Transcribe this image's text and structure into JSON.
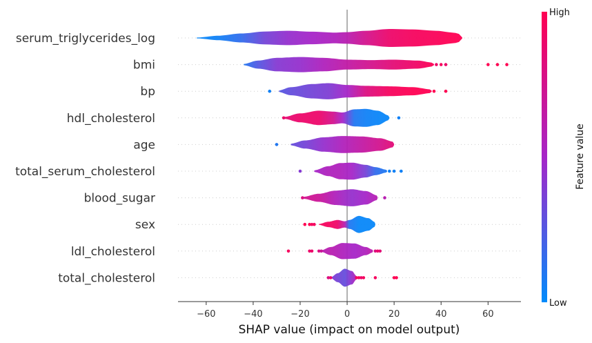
{
  "chart_data": {
    "type": "violin",
    "xlabel": "SHAP value (impact on model output)",
    "xlim": [
      -72,
      74
    ],
    "xticks": [
      -60,
      -40,
      -20,
      0,
      20,
      40,
      60
    ],
    "xtick_labels": [
      "−60",
      "−40",
      "−20",
      "0",
      "20",
      "40",
      "60"
    ],
    "colorbar": {
      "title": "Feature value",
      "high_label": "High",
      "low_label": "Low",
      "low_color": "#008bfb",
      "mid_color": "#a625c8",
      "high_color": "#ff0052"
    },
    "features": [
      {
        "name": "serum_triglycerides_log",
        "profile": [
          [
            -64,
            0.05,
            0.02
          ],
          [
            -55,
            0.25,
            0.05
          ],
          [
            -45,
            0.5,
            0.15
          ],
          [
            -35,
            0.72,
            0.35
          ],
          [
            -25,
            0.8,
            0.45
          ],
          [
            -15,
            0.7,
            0.5
          ],
          [
            -5,
            0.6,
            0.55
          ],
          [
            0,
            0.65,
            0.6
          ],
          [
            8,
            0.8,
            0.75
          ],
          [
            18,
            1.0,
            0.9
          ],
          [
            28,
            0.95,
            0.95
          ],
          [
            38,
            0.8,
            0.97
          ],
          [
            45,
            0.6,
            1.0
          ],
          [
            49,
            0.4,
            1.0
          ]
        ],
        "outliers": []
      },
      {
        "name": "bmi",
        "profile": [
          [
            -44,
            0.08,
            0.1
          ],
          [
            -38,
            0.45,
            0.25
          ],
          [
            -30,
            0.75,
            0.4
          ],
          [
            -20,
            0.85,
            0.45
          ],
          [
            -10,
            0.75,
            0.55
          ],
          [
            0,
            0.55,
            0.65
          ],
          [
            10,
            0.5,
            0.75
          ],
          [
            20,
            0.55,
            0.85
          ],
          [
            30,
            0.45,
            0.92
          ],
          [
            37,
            0.2,
            1.0
          ]
        ],
        "outliers": [
          [
            38,
            0.9
          ],
          [
            40,
            0.95
          ],
          [
            42,
            0.9
          ],
          [
            60,
            1.0
          ],
          [
            64,
            1.0
          ],
          [
            68,
            1.0
          ]
        ]
      },
      {
        "name": "bp",
        "profile": [
          [
            -29,
            0.1,
            0.25
          ],
          [
            -24,
            0.45,
            0.3
          ],
          [
            -15,
            0.8,
            0.35
          ],
          [
            -8,
            0.9,
            0.38
          ],
          [
            0,
            0.7,
            0.5
          ],
          [
            8,
            0.6,
            0.8
          ],
          [
            18,
            0.55,
            0.95
          ],
          [
            28,
            0.45,
            1.0
          ],
          [
            36,
            0.2,
            1.0
          ]
        ],
        "outliers": [
          [
            -33,
            0.05
          ],
          [
            37,
            1.0
          ],
          [
            42,
            1.0
          ]
        ]
      },
      {
        "name": "hdl_cholesterol",
        "profile": [
          [
            -27,
            0.1,
            0.85
          ],
          [
            -20,
            0.5,
            0.9
          ],
          [
            -12,
            0.8,
            0.9
          ],
          [
            -6,
            0.7,
            0.75
          ],
          [
            -2,
            0.6,
            0.5
          ],
          [
            3,
            0.95,
            0.1
          ],
          [
            8,
            1.0,
            0.05
          ],
          [
            13,
            0.8,
            0.03
          ],
          [
            18,
            0.25,
            0.02
          ]
        ],
        "outliers": [
          [
            -27,
            0.9
          ],
          [
            22,
            0.05
          ]
        ]
      },
      {
        "name": "age",
        "profile": [
          [
            -24,
            0.1,
            0.3
          ],
          [
            -18,
            0.45,
            0.35
          ],
          [
            -10,
            0.8,
            0.45
          ],
          [
            -2,
            0.95,
            0.55
          ],
          [
            6,
            0.9,
            0.65
          ],
          [
            14,
            0.7,
            0.75
          ],
          [
            20,
            0.3,
            0.85
          ]
        ],
        "outliers": [
          [
            -30,
            0.1
          ]
        ]
      },
      {
        "name": "total_serum_cholesterol",
        "profile": [
          [
            -14,
            0.1,
            0.5
          ],
          [
            -8,
            0.55,
            0.55
          ],
          [
            -3,
            0.9,
            0.55
          ],
          [
            2,
            0.95,
            0.5
          ],
          [
            8,
            0.7,
            0.35
          ],
          [
            12,
            0.45,
            0.15
          ],
          [
            17,
            0.15,
            0.08
          ]
        ],
        "outliers": [
          [
            -20,
            0.4
          ],
          [
            18,
            0.05
          ],
          [
            20,
            0.05
          ],
          [
            23,
            0.05
          ]
        ]
      },
      {
        "name": "blood_sugar",
        "profile": [
          [
            -19,
            0.1,
            0.75
          ],
          [
            -12,
            0.45,
            0.7
          ],
          [
            -5,
            0.8,
            0.55
          ],
          [
            2,
            0.95,
            0.45
          ],
          [
            8,
            0.75,
            0.5
          ],
          [
            13,
            0.25,
            0.6
          ]
        ],
        "outliers": [
          [
            -19,
            0.8
          ],
          [
            16,
            0.6
          ]
        ]
      },
      {
        "name": "sex",
        "profile": [
          [
            -12,
            0.05,
            0.95
          ],
          [
            -8,
            0.3,
            0.95
          ],
          [
            -4,
            0.5,
            0.9
          ],
          [
            -1,
            0.35,
            0.6
          ],
          [
            1,
            0.5,
            0.1
          ],
          [
            5,
            0.95,
            0.02
          ],
          [
            9,
            0.7,
            0.02
          ],
          [
            12,
            0.25,
            0.02
          ]
        ],
        "outliers": [
          [
            -18,
            1.0
          ],
          [
            -16,
            1.0
          ],
          [
            -15,
            0.95
          ],
          [
            -14,
            0.95
          ]
        ]
      },
      {
        "name": "ldl_cholesterol",
        "profile": [
          [
            -11,
            0.1,
            0.6
          ],
          [
            -7,
            0.45,
            0.6
          ],
          [
            -2,
            0.9,
            0.55
          ],
          [
            3,
            0.85,
            0.5
          ],
          [
            8,
            0.45,
            0.55
          ],
          [
            11,
            0.15,
            0.65
          ]
        ],
        "outliers": [
          [
            -25,
            0.95
          ],
          [
            -16,
            0.9
          ],
          [
            -15,
            0.9
          ],
          [
            -12,
            0.8
          ],
          [
            -11,
            0.7
          ],
          [
            12,
            0.8
          ],
          [
            13,
            0.9
          ],
          [
            14,
            0.85
          ]
        ]
      },
      {
        "name": "total_cholesterol",
        "profile": [
          [
            -7,
            0.05,
            0.4
          ],
          [
            -4,
            0.5,
            0.35
          ],
          [
            -1,
            1.0,
            0.3
          ],
          [
            2,
            0.75,
            0.45
          ],
          [
            4,
            0.2,
            0.6
          ]
        ],
        "outliers": [
          [
            -8,
            0.8
          ],
          [
            -7,
            0.9
          ],
          [
            4,
            0.95
          ],
          [
            5,
            0.95
          ],
          [
            6,
            0.9
          ],
          [
            7,
            0.95
          ],
          [
            12,
            0.95
          ],
          [
            20,
            1.0
          ],
          [
            21,
            1.0
          ]
        ]
      }
    ]
  }
}
